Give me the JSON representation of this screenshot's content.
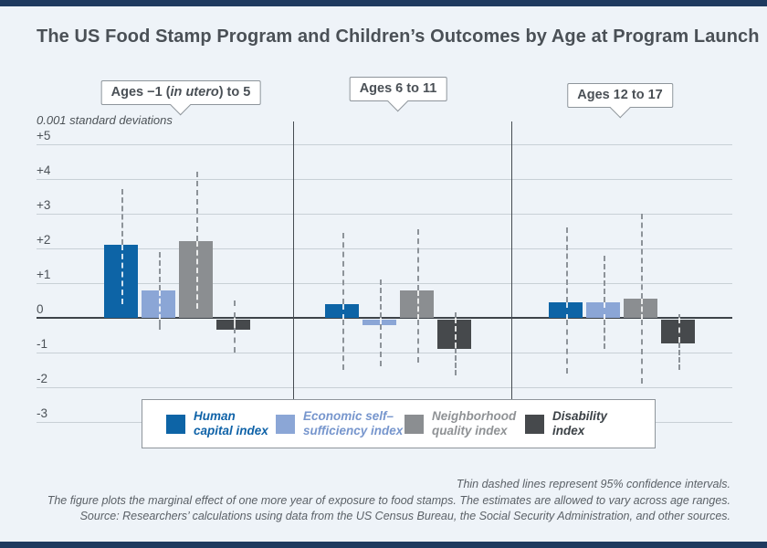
{
  "page": {
    "title": "The US Food Stamp Program and Children’s Outcomes by Age at Program Launch",
    "background_color": "#eef3f8",
    "accent_bar_color": "#1e3a5f"
  },
  "chart_data": {
    "type": "bar",
    "title": "The US Food Stamp Program and Children’s Outcomes by Age at Program Launch",
    "unit_label": "0.001 standard deviations",
    "xlabel": "",
    "ylabel": "0.001 standard deviations",
    "ylim": [
      -3.4,
      5.5
    ],
    "grid": true,
    "legend_position": "bottom-center",
    "y_axis": {
      "ticks": [
        {
          "label": "+5",
          "value": 5
        },
        {
          "label": "+4",
          "value": 4
        },
        {
          "label": "+3",
          "value": 3
        },
        {
          "label": "+2",
          "value": 2
        },
        {
          "label": "+1",
          "value": 1
        },
        {
          "label": "0",
          "value": 0
        },
        {
          "label": "-1",
          "value": -1
        },
        {
          "label": "-2",
          "value": -2
        },
        {
          "label": "-3",
          "value": -3
        }
      ]
    },
    "groups": [
      {
        "label": "Ages −1 (in utero) to 5",
        "label_prefix": "Ages −1 (",
        "label_italic": "in utero",
        "label_suffix": ") to 5"
      },
      {
        "label": "Ages 6 to 11",
        "label_prefix": "Ages 6 to 11",
        "label_italic": "",
        "label_suffix": ""
      },
      {
        "label": "Ages 12 to 17",
        "label_prefix": "Ages 12 to 17",
        "label_italic": "",
        "label_suffix": ""
      }
    ],
    "series": [
      {
        "name": "Human capital index",
        "legend_lines": [
          "Human",
          "capital index"
        ],
        "color": "#0d64a6",
        "text_color": "#1063a8",
        "values": [
          2.1,
          0.4,
          0.45
        ],
        "ci_low": [
          0.4,
          -1.5,
          -1.6
        ],
        "ci_high": [
          3.7,
          2.45,
          2.6
        ]
      },
      {
        "name": "Economic self–sufficiency index",
        "legend_lines": [
          "Economic self–",
          "sufficiency index"
        ],
        "color": "#8ba6d6",
        "text_color": "#7796cd",
        "values": [
          0.8,
          -0.18,
          0.45
        ],
        "ci_low": [
          -0.35,
          -1.4,
          -0.9
        ],
        "ci_high": [
          1.9,
          1.1,
          1.8
        ]
      },
      {
        "name": "Neighborhood quality index",
        "legend_lines": [
          "Neighborhood",
          "quality index"
        ],
        "color": "#8b8e91",
        "text_color": "#8f9295",
        "values": [
          2.2,
          0.78,
          0.55
        ],
        "ci_low": [
          0.25,
          -1.3,
          -1.9
        ],
        "ci_high": [
          4.2,
          2.55,
          3.0
        ]
      },
      {
        "name": "Disability index",
        "legend_lines": [
          "Disability",
          "index"
        ],
        "color": "#46494c",
        "text_color": "#3c4247",
        "values": [
          -0.3,
          -0.86,
          -0.7
        ],
        "ci_low": [
          -1.0,
          -1.65,
          -1.5
        ],
        "ci_high": [
          0.5,
          0.15,
          0.1
        ]
      }
    ],
    "notes": [
      "Thin dashed lines represent 95% confidence intervals.",
      "The figure plots the marginal effect of one more year of exposure to food stamps. The estimates are allowed to vary across age ranges.",
      "Source: Researchers’ calculations using data from the US Census Bureau, the Social Security Administration, and other sources."
    ]
  }
}
